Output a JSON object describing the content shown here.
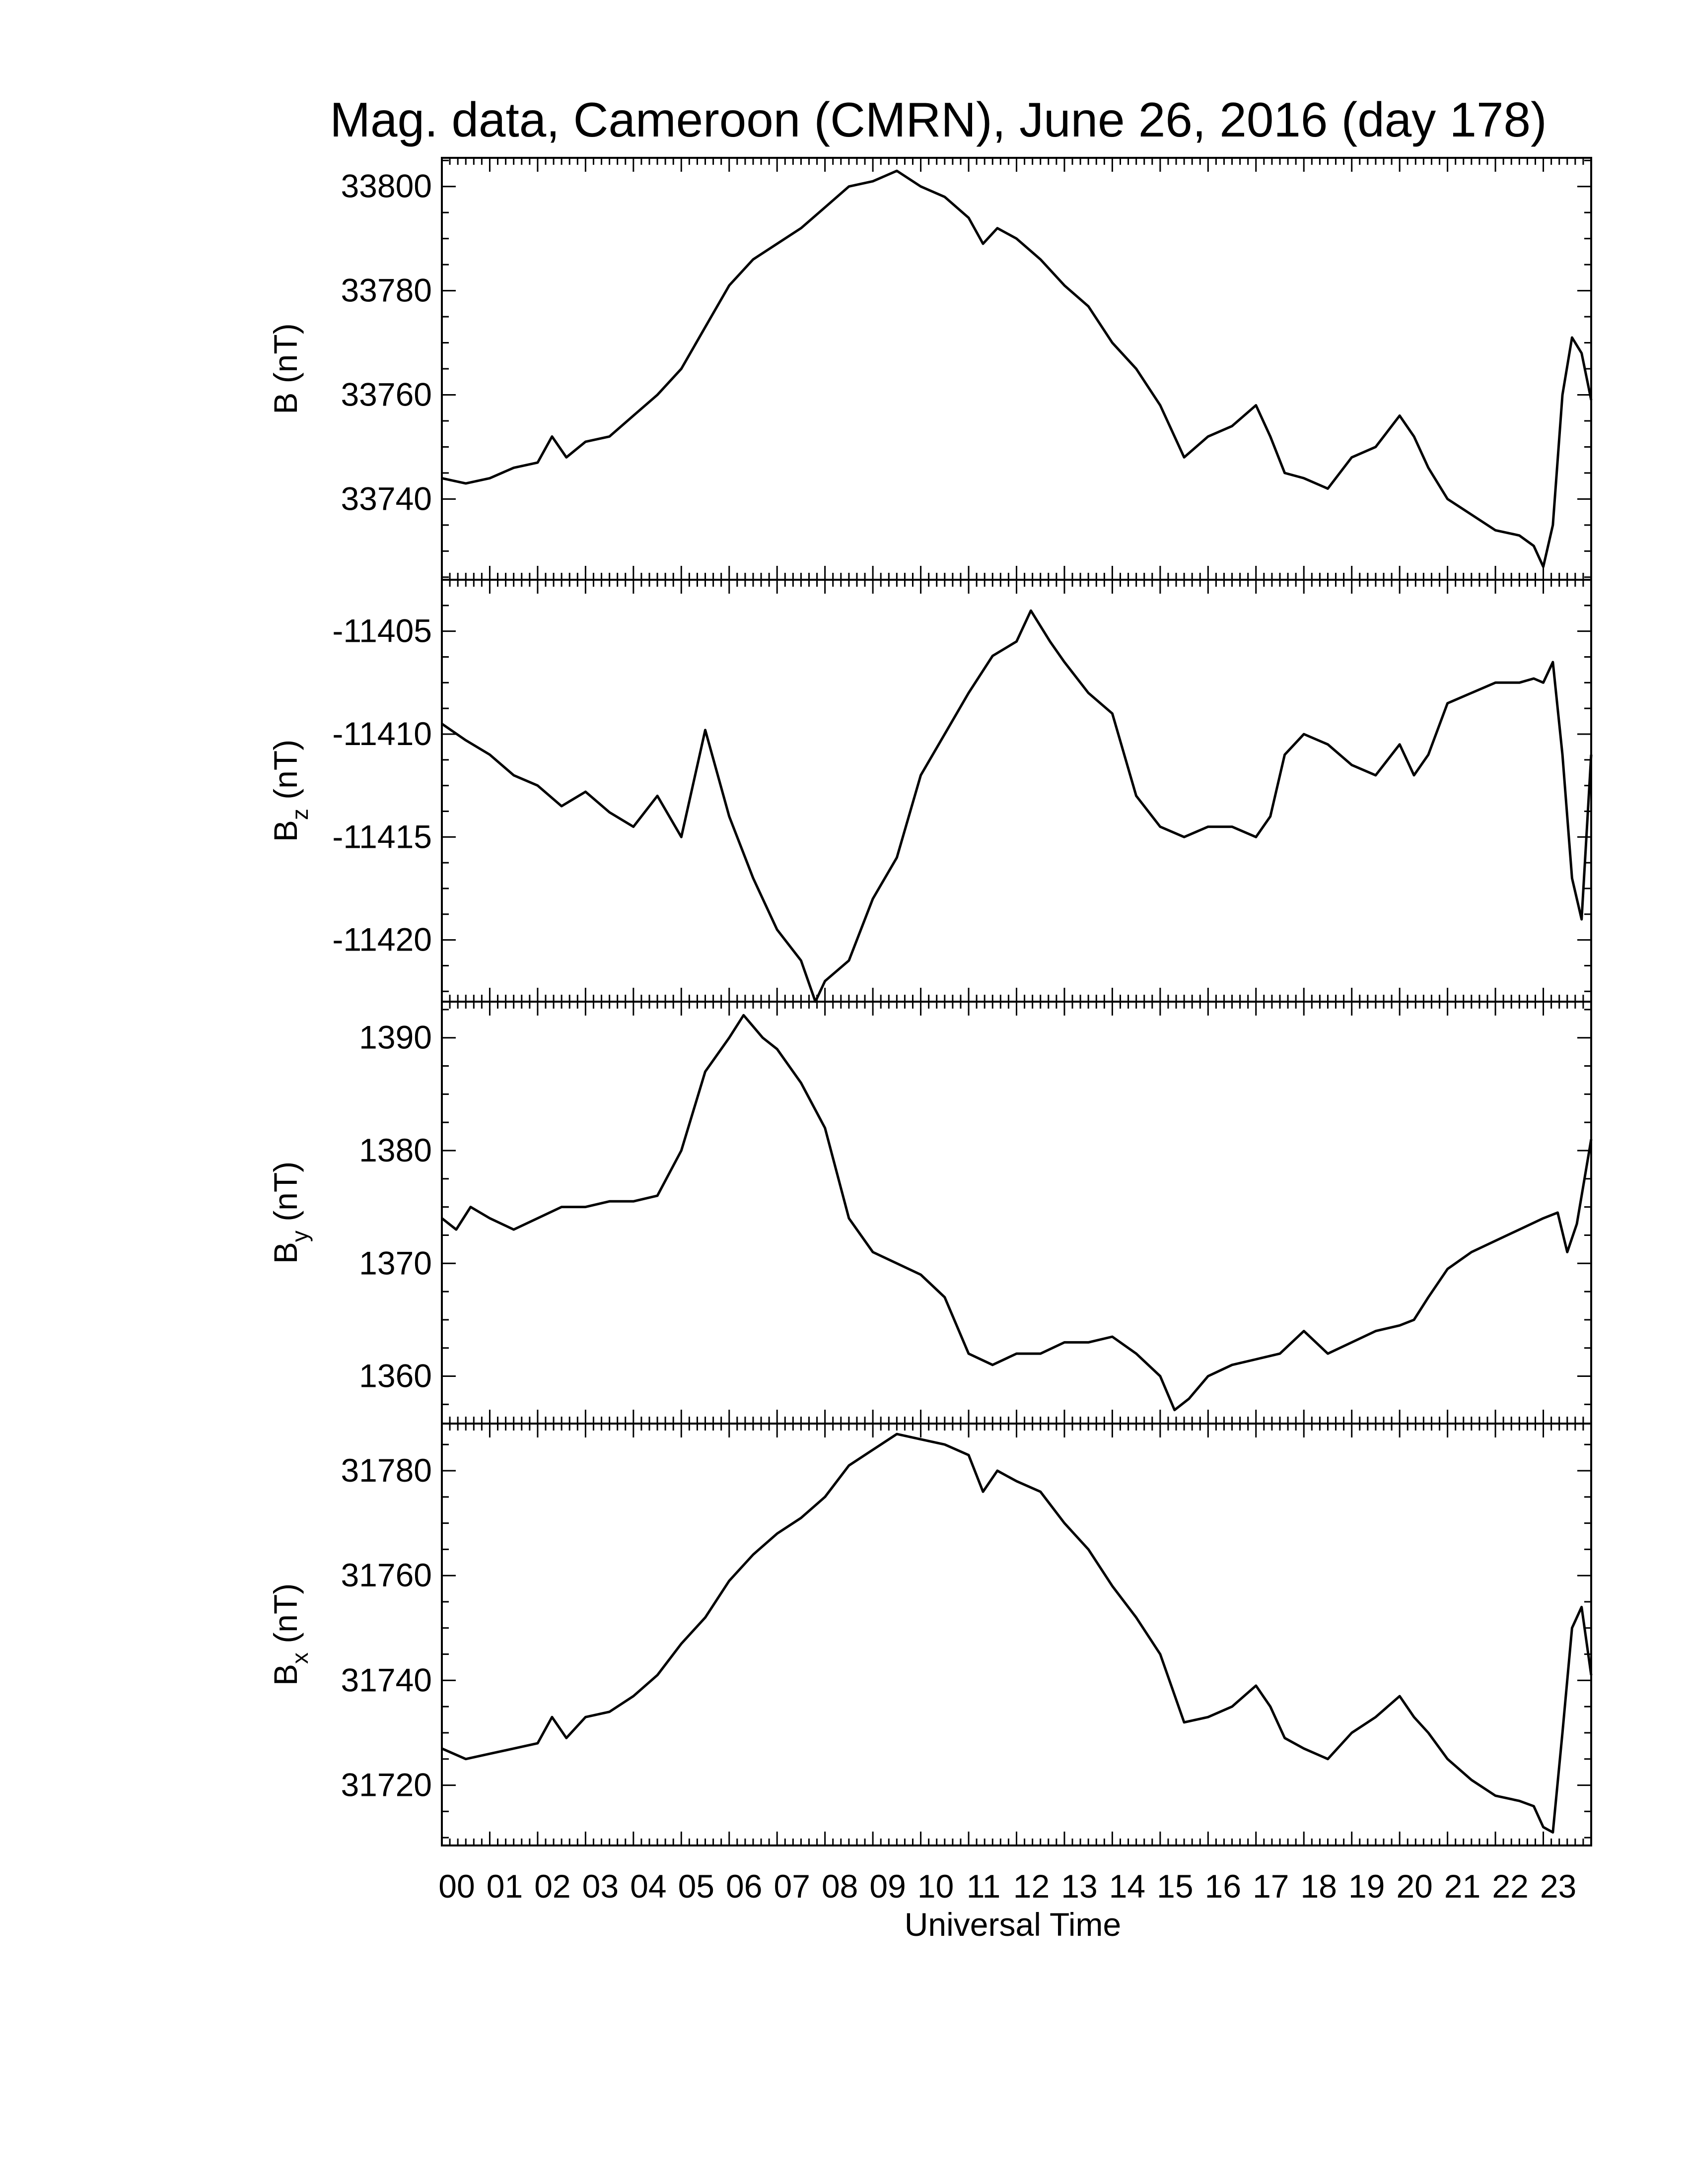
{
  "title": "Mag. data, Cameroon (CMRN), June 26, 2016 (day 178)",
  "xlabel": "Universal Time",
  "x_tick_labels": [
    "00",
    "01",
    "02",
    "03",
    "04",
    "05",
    "06",
    "07",
    "08",
    "09",
    "10",
    "11",
    "12",
    "13",
    "14",
    "15",
    "16",
    "17",
    "18",
    "19",
    "20",
    "21",
    "22",
    "23"
  ],
  "chart_data": [
    {
      "type": "line",
      "ylabel": "B (nT)",
      "ylabel_main": "B",
      "ylabel_sub": "",
      "ylabel_unit": "(nT)",
      "ylim": [
        33724.5,
        33805.5
      ],
      "yticks": [
        33740,
        33760,
        33780,
        33800
      ],
      "xlim": [
        0,
        24
      ],
      "x": [
        0,
        0.5,
        1,
        1.5,
        2,
        2.3,
        2.6,
        3,
        3.5,
        4,
        4.5,
        5,
        5.5,
        6,
        6.5,
        7,
        7.5,
        8,
        8.5,
        9,
        9.5,
        10,
        10.5,
        11,
        11.3,
        11.6,
        12,
        12.5,
        13,
        13.5,
        14,
        14.5,
        15,
        15.5,
        16,
        16.5,
        17,
        17.3,
        17.6,
        18,
        18.5,
        19,
        19.5,
        20,
        20.3,
        20.6,
        21,
        21.5,
        22,
        22.5,
        22.8,
        23,
        23.2,
        23.4,
        23.6,
        23.8,
        24
      ],
      "y": [
        33744,
        33743,
        33744,
        33746,
        33747,
        33752,
        33748,
        33751,
        33752,
        33756,
        33760,
        33765,
        33773,
        33781,
        33786,
        33789,
        33792,
        33796,
        33800,
        33801,
        33803,
        33800,
        33798,
        33794,
        33789,
        33792,
        33790,
        33786,
        33781,
        33777,
        33770,
        33765,
        33758,
        33748,
        33752,
        33754,
        33758,
        33752,
        33745,
        33744,
        33742,
        33748,
        33750,
        33756,
        33752,
        33746,
        33740,
        33737,
        33734,
        33733,
        33731,
        33727,
        33735,
        33760,
        33771,
        33768,
        33759
      ]
    },
    {
      "type": "line",
      "ylabel": "Bz (nT)",
      "ylabel_main": "B",
      "ylabel_sub": "z",
      "ylabel_unit": "(nT)",
      "ylim": [
        -11423.0,
        -11402.5
      ],
      "yticks": [
        -11405,
        -11410,
        -11415,
        -11420
      ],
      "xlim": [
        0,
        24
      ],
      "x": [
        0,
        0.5,
        1,
        1.5,
        2,
        2.5,
        3,
        3.5,
        4,
        4.5,
        5,
        5.5,
        6,
        6.5,
        7,
        7.5,
        7.8,
        8,
        8.5,
        9,
        9.5,
        10,
        10.5,
        11,
        11.5,
        12,
        12.3,
        12.7,
        13,
        13.5,
        14,
        14.5,
        15,
        15.5,
        16,
        16.5,
        17,
        17.3,
        17.6,
        18,
        18.5,
        19,
        19.5,
        20,
        20.3,
        20.6,
        21,
        21.5,
        22,
        22.5,
        22.8,
        23,
        23.2,
        23.4,
        23.6,
        23.8,
        24
      ],
      "y": [
        -11409.5,
        -11410.3,
        -11411,
        -11412,
        -11412.5,
        -11413.5,
        -11412.8,
        -11413.8,
        -11414.5,
        -11413,
        -11415,
        -11409.8,
        -11414,
        -11417,
        -11419.5,
        -11421,
        -11423,
        -11422,
        -11421,
        -11418,
        -11416,
        -11412,
        -11410,
        -11408,
        -11406.2,
        -11405.5,
        -11404,
        -11405.5,
        -11406.5,
        -11408,
        -11409,
        -11413,
        -11414.5,
        -11415,
        -11414.5,
        -11414.5,
        -11415,
        -11414,
        -11411,
        -11410,
        -11410.5,
        -11411.5,
        -11412,
        -11410.5,
        -11412,
        -11411,
        -11408.5,
        -11408,
        -11407.5,
        -11407.5,
        -11407.3,
        -11407.5,
        -11406.5,
        -11411,
        -11417,
        -11419,
        -11411
      ]
    },
    {
      "type": "line",
      "ylabel": "By (nT)",
      "ylabel_main": "B",
      "ylabel_sub": "y",
      "ylabel_unit": "(nT)",
      "ylim": [
        1355.8,
        1393.2
      ],
      "yticks": [
        1360,
        1370,
        1380,
        1390
      ],
      "xlim": [
        0,
        24
      ],
      "x": [
        0,
        0.3,
        0.6,
        1,
        1.5,
        2,
        2.5,
        3,
        3.5,
        4,
        4.5,
        5,
        5.5,
        6,
        6.3,
        6.7,
        7,
        7.5,
        8,
        8.5,
        9,
        9.5,
        10,
        10.5,
        11,
        11.5,
        12,
        12.5,
        13,
        13.5,
        14,
        14.5,
        15,
        15.3,
        15.6,
        16,
        16.5,
        17,
        17.5,
        18,
        18.5,
        19,
        19.5,
        20,
        20.3,
        20.6,
        21,
        21.5,
        22,
        22.5,
        23,
        23.3,
        23.5,
        23.7,
        24
      ],
      "y": [
        1374,
        1373,
        1375,
        1374,
        1373,
        1374,
        1375,
        1375,
        1375.5,
        1375.5,
        1376,
        1380,
        1387,
        1390,
        1392,
        1390,
        1389,
        1386,
        1382,
        1374,
        1371,
        1370,
        1369,
        1367,
        1362,
        1361,
        1362,
        1362,
        1363,
        1363,
        1363.5,
        1362,
        1360,
        1357,
        1358,
        1360,
        1361,
        1361.5,
        1362,
        1364,
        1362,
        1363,
        1364,
        1364.5,
        1365,
        1367,
        1369.5,
        1371,
        1372,
        1373,
        1374,
        1374.5,
        1371,
        1373.5,
        1381
      ]
    },
    {
      "type": "line",
      "ylabel": "Bx (nT)",
      "ylabel_main": "B",
      "ylabel_sub": "x",
      "ylabel_unit": "(nT)",
      "ylim": [
        31708.5,
        31789.0
      ],
      "yticks": [
        31720,
        31740,
        31760,
        31780
      ],
      "xlim": [
        0,
        24
      ],
      "x": [
        0,
        0.5,
        1,
        1.5,
        2,
        2.3,
        2.6,
        3,
        3.5,
        4,
        4.5,
        5,
        5.5,
        6,
        6.5,
        7,
        7.5,
        8,
        8.5,
        9,
        9.5,
        10,
        10.5,
        11,
        11.3,
        11.6,
        12,
        12.5,
        13,
        13.5,
        14,
        14.5,
        15,
        15.5,
        16,
        16.5,
        17,
        17.3,
        17.6,
        18,
        18.5,
        19,
        19.5,
        20,
        20.3,
        20.6,
        21,
        21.5,
        22,
        22.5,
        22.8,
        23,
        23.2,
        23.4,
        23.6,
        23.8,
        24
      ],
      "y": [
        31727,
        31725,
        31726,
        31727,
        31728,
        31733,
        31729,
        31733,
        31734,
        31737,
        31741,
        31747,
        31752,
        31759,
        31764,
        31768,
        31771,
        31775,
        31781,
        31784,
        31787,
        31786,
        31785,
        31783,
        31776,
        31780,
        31778,
        31776,
        31770,
        31765,
        31758,
        31752,
        31745,
        31732,
        31733,
        31735,
        31739,
        31735,
        31729,
        31727,
        31725,
        31730,
        31733,
        31737,
        31733,
        31730,
        31725,
        31721,
        31718,
        31717,
        31716,
        31712,
        31711,
        31730,
        31750,
        31754,
        31741
      ]
    }
  ]
}
